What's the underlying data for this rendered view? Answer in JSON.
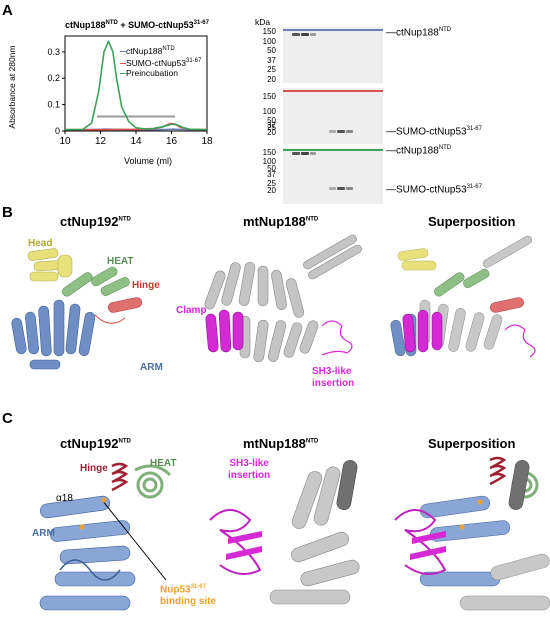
{
  "panels": {
    "a": "A",
    "b": "B",
    "c": "C"
  },
  "chart_data": {
    "type": "line",
    "title_main": "ctNup188",
    "title_sup1": "NTD",
    "title_mid": " + SUMO-ctNup53",
    "title_sup2": "31-67",
    "xlabel": "Volume (ml)",
    "ylabel": "Absorbance at 280nm",
    "xlim": [
      10,
      18
    ],
    "ylim": [
      0,
      0.36
    ],
    "xticks": [
      "10",
      "12",
      "14",
      "16",
      "18"
    ],
    "yticks": [
      "0",
      "0.1",
      "0.2",
      "0.3"
    ],
    "legend_placement": "top-right",
    "series": [
      {
        "name": "ctNup188",
        "name_sup": "NTD",
        "color": "#6b7fb8",
        "x": [
          10,
          11,
          11.8,
          12.2,
          12.5,
          12.8,
          13.1,
          13.5,
          14,
          15,
          15.8,
          16.1,
          16.5,
          17,
          18
        ],
        "y": [
          0.005,
          0.005,
          0.006,
          0.007,
          0.007,
          0.006,
          0.006,
          0.005,
          0.005,
          0.005,
          0.006,
          0.007,
          0.006,
          0.005,
          0.005
        ]
      },
      {
        "name": "SUMO-ctNup53",
        "name_sup": "31-67",
        "color": "#d9534f",
        "x": [
          10,
          12,
          14,
          15,
          15.5,
          15.9,
          16.2,
          16.5,
          17,
          18
        ],
        "y": [
          0.005,
          0.005,
          0.006,
          0.008,
          0.015,
          0.028,
          0.026,
          0.014,
          0.007,
          0.005
        ]
      },
      {
        "name": "Preincubation",
        "name_sup": "",
        "color": "#3aa35a",
        "x": [
          10,
          11,
          11.5,
          11.9,
          12.2,
          12.45,
          12.7,
          12.9,
          13.2,
          13.6,
          14,
          14.5,
          15,
          15.6,
          16,
          16.3,
          16.7,
          17,
          18
        ],
        "y": [
          0.005,
          0.006,
          0.03,
          0.15,
          0.3,
          0.34,
          0.3,
          0.2,
          0.09,
          0.035,
          0.012,
          0.008,
          0.01,
          0.018,
          0.026,
          0.024,
          0.012,
          0.007,
          0.005
        ]
      }
    ],
    "fraction_bar": {
      "x": [
        11.8,
        16.2
      ],
      "y": 0.055,
      "color": "#999999"
    }
  },
  "gels": {
    "kda_label": "kDa",
    "markers": [
      "150",
      "100",
      "50",
      "37",
      "25",
      "20"
    ],
    "markers_mid": [
      "150",
      "100",
      "50",
      "37",
      "25",
      "20"
    ],
    "markers_bottom": [
      "150",
      "100",
      "50",
      "37",
      "25",
      "20"
    ],
    "top_label": "ctNup188",
    "top_label_sup": "NTD",
    "mid_label": "SUMO-ctNup53",
    "mid_label_sup": "31-67",
    "bottom_label_1": "ctNup188",
    "bottom_label_1_sup": "NTD",
    "bottom_label_2": "SUMO-ctNup53",
    "bottom_label_2_sup": "31-67",
    "top_line_color": "#6b7fb8",
    "mid_line_color": "#d9534f",
    "bottom_line_color": "#3aa35a"
  },
  "panel_b": {
    "col1_title": "ctNup192",
    "col1_sup": "NTD",
    "col2_title": "mtNup188",
    "col2_sup": "NTD",
    "col3_title": "Superposition",
    "labels": {
      "head": "Head",
      "heat": "HEAT",
      "hinge": "Hinge",
      "arm": "ARM",
      "clamp": "Clamp",
      "sh3_1": "SH3-like",
      "sh3_2": "insertion"
    }
  },
  "panel_c": {
    "col1_title": "ctNup192",
    "col1_sup": "NTD",
    "col2_title": "mtNup188",
    "col2_sup": "NTD",
    "col3_title": "Superposition",
    "labels": {
      "hinge": "Hinge",
      "heat": "HEAT",
      "alpha18": "α18",
      "arm": "ARM",
      "nup53_1": "Nup53",
      "nup53_sup": "31-67",
      "nup53_2": "binding site",
      "sh3_1": "SH3-like",
      "sh3_2": "insertion"
    }
  },
  "colors": {
    "head": "#e8e07a",
    "heat": "#8fbf85",
    "hinge": "#d9534f",
    "arm": "#5b80b8",
    "clamp": "#d629d6",
    "grey": "#b0b0b0",
    "orange": "#f0a030"
  }
}
